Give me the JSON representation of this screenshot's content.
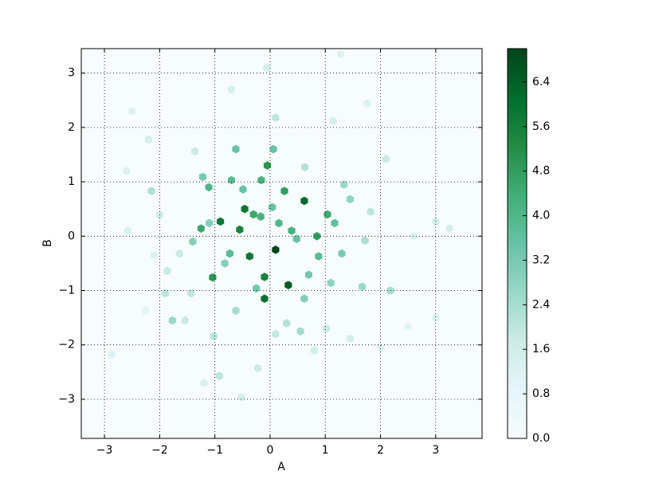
{
  "chart_data": {
    "type": "hexbin",
    "xlabel": "A",
    "ylabel": "B",
    "colormap": "BuGn",
    "grid": true,
    "xlim": [
      -3.42,
      3.84
    ],
    "ylim": [
      -3.72,
      3.45
    ],
    "xticks": [
      {
        "value": -3,
        "label": "−3"
      },
      {
        "value": -2,
        "label": "−2"
      },
      {
        "value": -1,
        "label": "−1"
      },
      0,
      1,
      2,
      3
    ],
    "yticks": [
      {
        "value": -3,
        "label": "−3"
      },
      {
        "value": -2,
        "label": "−2"
      },
      {
        "value": -1,
        "label": "−1"
      },
      0,
      1,
      2,
      3
    ],
    "clim": [
      0,
      7
    ],
    "cticks": [
      {
        "value": 0,
        "label": "0.0"
      },
      {
        "value": 0.8,
        "label": "0.8"
      },
      {
        "value": 1.6,
        "label": "1.6"
      },
      {
        "value": 2.4,
        "label": "2.4"
      },
      {
        "value": 3.2,
        "label": "3.2"
      },
      {
        "value": 4.0,
        "label": "4.0"
      },
      {
        "value": 4.8,
        "label": "4.8"
      },
      {
        "value": 5.6,
        "label": "5.6"
      },
      {
        "value": 6.4,
        "label": "6.4"
      }
    ],
    "x": [
      0.1,
      0.62,
      0.33,
      -0.46,
      -0.9,
      -0.1,
      -0.1,
      -0.37,
      -0.55,
      -1.04,
      -0.05,
      0.26,
      0.85,
      1.04,
      -1.25,
      -1.11,
      -0.3,
      -0.17,
      0.39,
      -0.16,
      -0.7,
      -0.62,
      0.06,
      0.88,
      1.17,
      -0.25,
      0.62,
      -1.77,
      0.55,
      -0.92,
      -1.22,
      -0.73,
      -0.49,
      -1.4,
      1.3,
      1.45,
      1.67,
      0.1,
      1.28,
      -2.5,
      3.0,
      2.18,
      2.0,
      -2.87,
      -1.54,
      -1.9,
      -2.15,
      2.1,
      3.25,
      3.0,
      1.82,
      1.72,
      1.02,
      -1.02,
      -0.52,
      -0.22,
      1.14,
      1.76,
      -0.7,
      -0.06,
      -2.2,
      -2.6,
      0.16,
      0.48,
      -1.1,
      0.04,
      -0.82,
      0.7,
      1.1,
      0.3,
      -0.62,
      -1.43,
      1.34,
      0.63,
      -1.36,
      -2.0,
      -2.58,
      2.6,
      2.5,
      -2.26,
      -1.2,
      0.1,
      0.8,
      1.45,
      -1.64,
      -1.86,
      -2.1
    ],
    "y": [
      -0.25,
      0.65,
      -0.9,
      0.5,
      0.27,
      -0.75,
      -1.15,
      -0.37,
      0.12,
      -0.76,
      1.3,
      0.83,
      0.0,
      0.4,
      0.14,
      0.9,
      0.4,
      0.36,
      0.1,
      1.03,
      1.03,
      1.6,
      1.6,
      -0.37,
      0.24,
      -0.96,
      -1.15,
      -1.55,
      -1.75,
      -2.57,
      1.09,
      -0.32,
      0.86,
      -0.1,
      -0.32,
      0.68,
      -0.93,
      2.18,
      3.35,
      2.3,
      -1.5,
      -1.0,
      -2.05,
      -2.18,
      -1.55,
      -1.05,
      0.83,
      1.42,
      0.14,
      0.27,
      0.45,
      -0.08,
      -1.7,
      -1.84,
      -2.96,
      -2.43,
      2.12,
      2.44,
      2.7,
      3.1,
      1.78,
      1.2,
      0.24,
      -0.05,
      0.24,
      0.53,
      -0.5,
      -0.71,
      -0.86,
      -1.6,
      -1.37,
      -1.05,
      0.95,
      1.27,
      1.56,
      0.39,
      0.1,
      0.0,
      -1.66,
      -1.37,
      -2.7,
      -1.8,
      -2.1,
      -1.88,
      -0.32,
      -0.64,
      -0.35
    ],
    "values": [
      7.0,
      6.2,
      6.5,
      5.8,
      5.8,
      5.5,
      6.0,
      5.8,
      5.5,
      5.0,
      5.0,
      4.8,
      4.8,
      4.5,
      4.5,
      4.0,
      4.5,
      4.2,
      4.2,
      4.2,
      3.8,
      3.5,
      3.5,
      3.8,
      3.6,
      3.3,
      3.0,
      2.6,
      2.5,
      2.0,
      3.2,
      3.8,
      3.5,
      3.0,
      3.2,
      2.8,
      2.6,
      2.0,
      1.2,
      1.2,
      1.2,
      2.4,
      1.2,
      1.2,
      1.8,
      2.0,
      2.3,
      1.8,
      1.4,
      1.6,
      2.0,
      2.3,
      1.8,
      2.1,
      1.5,
      1.8,
      1.5,
      1.2,
      1.4,
      1.5,
      1.5,
      1.2,
      4.0,
      3.5,
      3.0,
      3.5,
      3.0,
      3.3,
      2.8,
      2.2,
      2.4,
      2.0,
      2.6,
      2.2,
      1.8,
      1.6,
      1.4,
      1.2,
      1.0,
      1.0,
      1.2,
      1.9,
      1.6,
      1.5,
      1.8,
      1.8,
      1.2
    ]
  }
}
